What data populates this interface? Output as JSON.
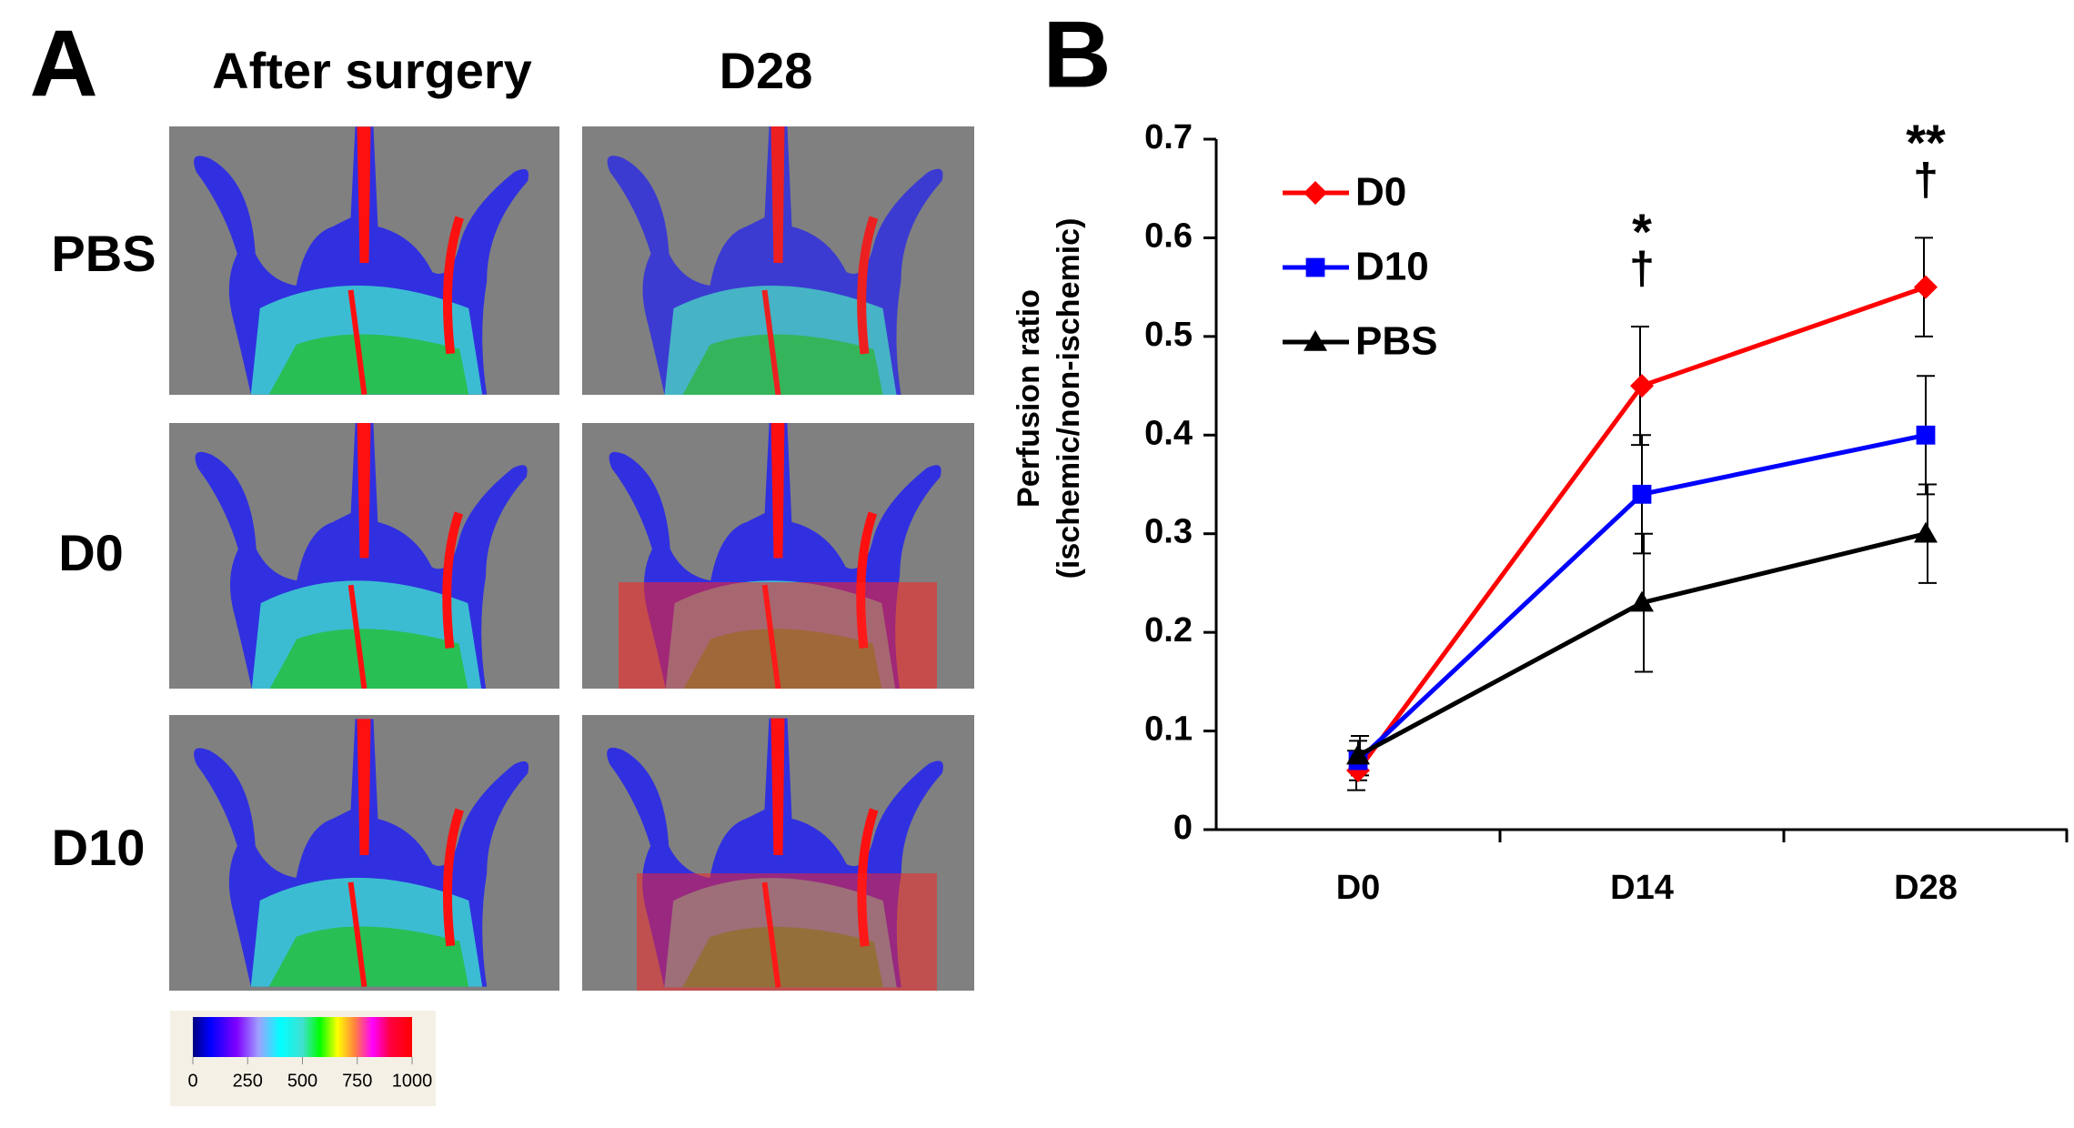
{
  "panel_a": {
    "label": "A",
    "columns": [
      "After surgery",
      "D28"
    ],
    "rows": [
      "PBS",
      "D0",
      "D10"
    ],
    "colorbar": {
      "ticks": [
        0,
        250,
        500,
        750,
        1000
      ],
      "range": [
        0,
        1000
      ]
    }
  },
  "chart_data": {
    "type": "line",
    "panel_label": "B",
    "y_label": [
      "Perfusion ratio",
      "(ischemic/non-ischemic)"
    ],
    "categories": [
      "D0",
      "D14",
      "D28"
    ],
    "series": [
      {
        "name": "D0",
        "color": "#ff0000",
        "marker": "diamond",
        "values": [
          0.06,
          0.45,
          0.55
        ],
        "errors": [
          0.02,
          0.06,
          0.05
        ]
      },
      {
        "name": "D10",
        "color": "#0000ff",
        "marker": "square",
        "values": [
          0.07,
          0.34,
          0.4
        ],
        "errors": [
          0.02,
          0.06,
          0.06
        ]
      },
      {
        "name": "PBS",
        "color": "#000000",
        "marker": "triangle",
        "values": [
          0.075,
          0.23,
          0.3
        ],
        "errors": [
          0.02,
          0.07,
          0.05
        ]
      }
    ],
    "ylim": [
      0,
      0.7
    ],
    "yticks": [
      0,
      0.1,
      0.2,
      0.3,
      0.4,
      0.5,
      0.6,
      0.7
    ],
    "legend": "upper left",
    "annotations": [
      {
        "x": "D14",
        "text": "*"
      },
      {
        "x": "D14",
        "text": "†"
      },
      {
        "x": "D28",
        "text": "**"
      },
      {
        "x": "D28",
        "text": "†"
      }
    ]
  }
}
